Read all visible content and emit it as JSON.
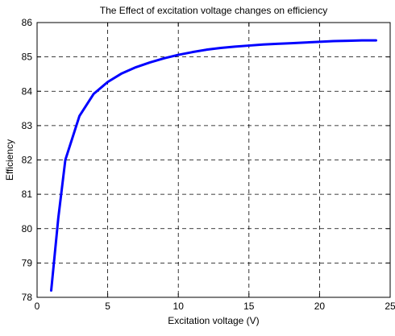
{
  "chart_data": {
    "type": "line",
    "title": "The Effect of excitation voltage changes on efficiency",
    "xlabel": "Excitation voltage (V)",
    "ylabel": "Efficiency",
    "xlim": [
      0,
      25
    ],
    "ylim": [
      78,
      86
    ],
    "xticks": [
      0,
      5,
      10,
      15,
      20,
      25
    ],
    "yticks": [
      78,
      79,
      80,
      81,
      82,
      83,
      84,
      85,
      86
    ],
    "grid": true,
    "grid_style": "dashed",
    "line_color": "#0000ff",
    "series": [
      {
        "x": [
          1,
          1.5,
          2,
          3,
          4,
          5,
          6,
          7,
          8,
          9,
          10,
          11,
          12,
          13,
          14,
          15,
          16,
          17,
          18,
          19,
          20,
          21,
          22,
          23,
          24
        ],
        "y": [
          78.2,
          80.3,
          82.0,
          83.28,
          83.92,
          84.27,
          84.52,
          84.7,
          84.84,
          84.96,
          85.06,
          85.14,
          85.21,
          85.26,
          85.3,
          85.33,
          85.36,
          85.38,
          85.4,
          85.42,
          85.44,
          85.46,
          85.47,
          85.48,
          85.48
        ]
      }
    ]
  }
}
